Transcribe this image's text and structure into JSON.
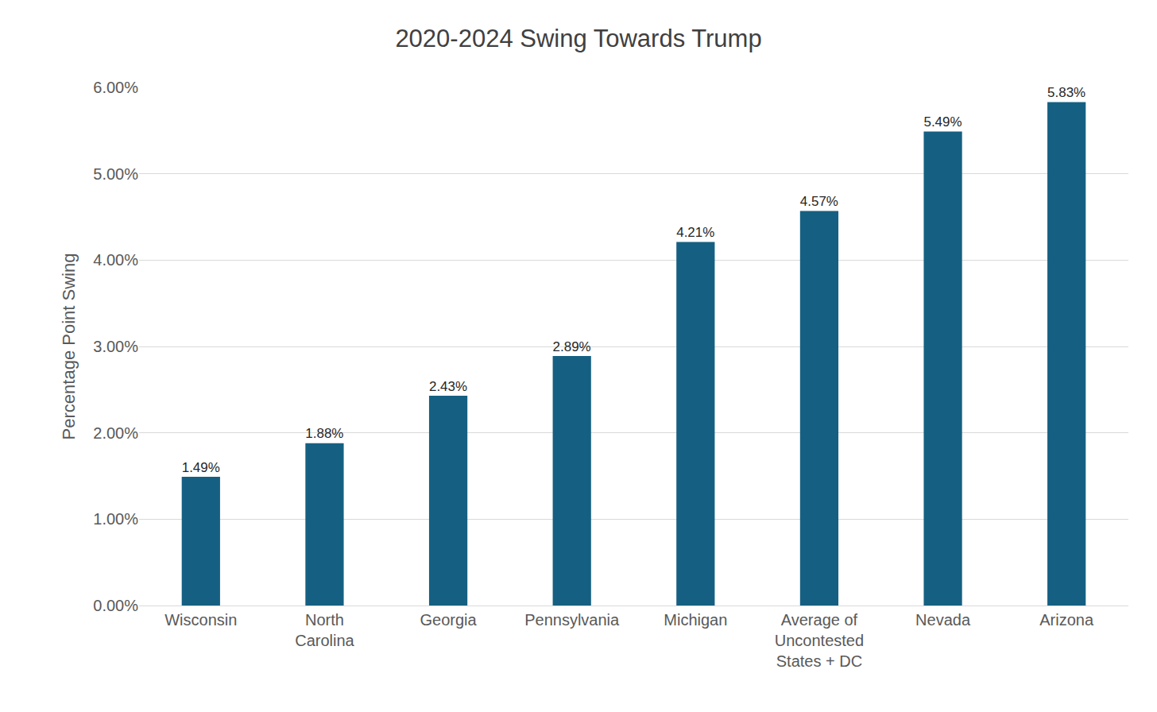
{
  "chart_data": {
    "type": "bar",
    "title": "2020-2024 Swing Towards Trump",
    "y_label": "Percentage Point Swing",
    "categories": [
      "Wisconsin",
      "North Carolina",
      "Georgia",
      "Pennsylvania",
      "Michigan",
      "Average of Uncontested States + DC",
      "Nevada",
      "Arizona"
    ],
    "values": [
      1.49,
      1.88,
      2.43,
      2.89,
      4.21,
      4.57,
      5.49,
      5.83
    ],
    "value_labels": [
      "1.49%",
      "1.88%",
      "2.43%",
      "2.89%",
      "4.21%",
      "4.57%",
      "5.49%",
      "5.83%"
    ],
    "color": "#156082",
    "ylim": [
      0,
      6
    ],
    "yticks": [
      {
        "value": 0,
        "label": "0.00%"
      },
      {
        "value": 1,
        "label": "1.00%"
      },
      {
        "value": 2,
        "label": "2.00%"
      },
      {
        "value": 3,
        "label": "3.00%"
      },
      {
        "value": 4,
        "label": "4.00%"
      },
      {
        "value": 5,
        "label": "5.00%"
      },
      {
        "value": 6,
        "label": "6.00%"
      }
    ],
    "grid": true,
    "data_labels": true
  }
}
